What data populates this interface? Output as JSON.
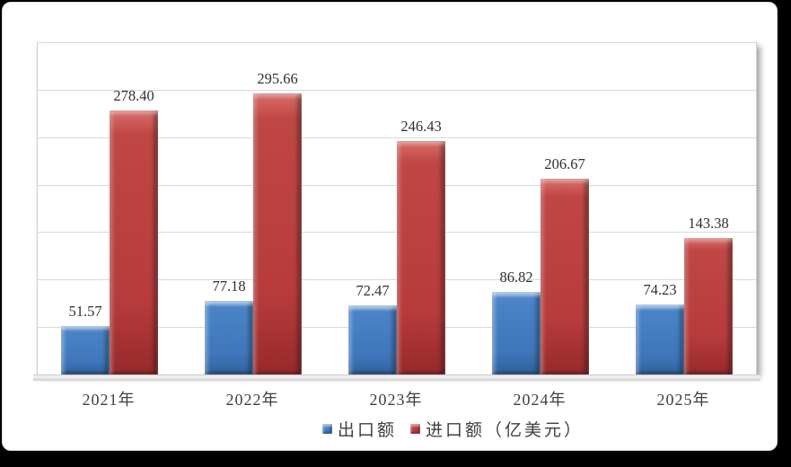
{
  "chart_data": {
    "type": "bar",
    "title": "",
    "xlabel": "",
    "ylabel": "",
    "categories": [
      "2021年",
      "2022年",
      "2023年",
      "2024年",
      "2025年"
    ],
    "series": [
      {
        "name": "出口额",
        "values": [
          51.57,
          77.18,
          72.47,
          86.82,
          74.23
        ],
        "labels": [
          "51.57",
          "77.18",
          "72.47",
          "86.82",
          "74.23"
        ],
        "color": "#4279BE"
      },
      {
        "name": "进口额（亿美元）",
        "values": [
          278.4,
          295.66,
          246.43,
          206.67,
          143.38
        ],
        "labels": [
          "278.40",
          "295.66",
          "246.43",
          "206.67",
          "143.38"
        ],
        "color": "#B83B3D"
      }
    ],
    "ylim": [
      0,
      350
    ],
    "major_unit": 50,
    "grid": true,
    "gridline_count": 7,
    "legend_position": "bottom",
    "data_labels": true
  },
  "legend": {
    "items": [
      {
        "label": "出口额",
        "series": "export",
        "color": "#4279BE"
      },
      {
        "label": "进口额（亿美元）",
        "series": "import",
        "color": "#B83B3D"
      }
    ]
  },
  "colors": {
    "background": "#000000",
    "panel": "#FFFFFF",
    "gridline": "#D9D9D9",
    "axis_text": "#404040",
    "data_label_text": "#303030",
    "export_bar": "#4279BE",
    "import_bar": "#B83B3D",
    "floor": "#ECECEC"
  }
}
